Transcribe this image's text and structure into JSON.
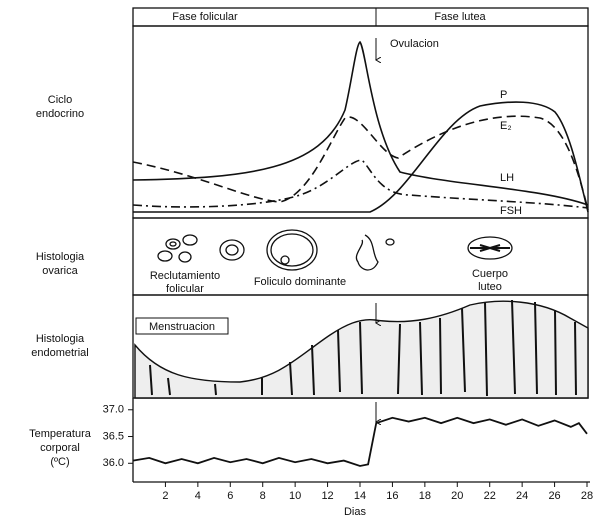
{
  "header": {
    "phase_follicular": "Fase folicular",
    "phase_luteal": "Fase lutea"
  },
  "row_labels": [
    [
      "Ciclo",
      "endocrino"
    ],
    [
      "Histologia",
      "ovarica"
    ],
    [
      "Histologia",
      "endometrial"
    ],
    [
      "Temperatura",
      "corporal",
      "(ºC)"
    ]
  ],
  "endocrine": {
    "ovulation": "Ovulacion",
    "hormones": [
      "P",
      "E₂",
      "LH",
      "FSH"
    ]
  },
  "ovary": {
    "labels": [
      [
        "Reclutamiento",
        "folicular"
      ],
      [
        "Foliculo dominante"
      ],
      [
        "Cuerpo",
        "luteo"
      ]
    ]
  },
  "endometrium": {
    "label": "Menstruacion"
  },
  "temperature": {
    "x": [
      0,
      1,
      2,
      3,
      4,
      5,
      6,
      7,
      8,
      9,
      10,
      11,
      12,
      13,
      14,
      14.5,
      15,
      16,
      17,
      18,
      19,
      20,
      21,
      22,
      23,
      24,
      25,
      26,
      27,
      27.5,
      28
    ],
    "values": [
      36.05,
      36.1,
      36.0,
      36.08,
      36.0,
      36.1,
      36.02,
      36.08,
      36.0,
      36.1,
      36.02,
      36.08,
      36.0,
      36.05,
      35.95,
      35.98,
      36.75,
      36.85,
      36.78,
      36.85,
      36.75,
      36.85,
      36.75,
      36.82,
      36.72,
      36.82,
      36.7,
      36.8,
      36.68,
      36.75,
      36.55
    ],
    "xlim": [
      0,
      28
    ],
    "ylim": [
      35.65,
      37.22
    ],
    "xticks": [
      2,
      4,
      6,
      8,
      10,
      12,
      14,
      16,
      18,
      20,
      22,
      24,
      26,
      28
    ],
    "yticks": [
      {
        "value": 37,
        "label": "37.0"
      },
      {
        "value": 36.5,
        "label": "36.5"
      },
      {
        "value": 36,
        "label": "36.0"
      }
    ],
    "xlabel": "Dias"
  }
}
